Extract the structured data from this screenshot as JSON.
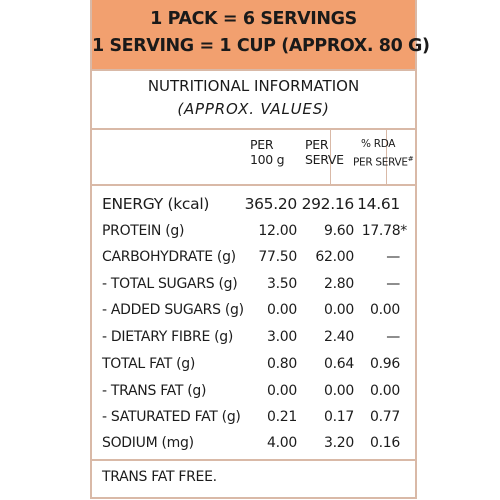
{
  "header": {
    "line1": "1 PACK = 6 SERVINGS",
    "line2": "1 SERVING = 1 CUP (APPROX. 80 G)"
  },
  "title": {
    "line1": "NUTRITIONAL INFORMATION",
    "line2": "(APPROX. VALUES)"
  },
  "columns": {
    "per100_line1": "PER",
    "per100_line2": "100 g",
    "perserve_line1": "PER",
    "perserve_line2": "SERVE",
    "rda_line1": "% RDA",
    "rda_line2": "PER SERVE",
    "rda_mark": "#"
  },
  "rows": [
    {
      "nutrient": "ENERGY (kcal)",
      "per100": "365.20",
      "perserve": "292.16",
      "rda": "14.61"
    },
    {
      "nutrient": "PROTEIN (g)",
      "per100": "12.00",
      "perserve": "9.60",
      "rda": "17.78*"
    },
    {
      "nutrient": "CARBOHYDRATE (g)",
      "per100": "77.50",
      "perserve": "62.00",
      "rda": "—"
    },
    {
      "nutrient": "- TOTAL SUGARS (g)",
      "per100": "3.50",
      "perserve": "2.80",
      "rda": "—"
    },
    {
      "nutrient": "- ADDED SUGARS (g)",
      "per100": "0.00",
      "perserve": "0.00",
      "rda": "0.00"
    },
    {
      "nutrient": "- DIETARY FIBRE (g)",
      "per100": "3.00",
      "perserve": "2.40",
      "rda": "—"
    },
    {
      "nutrient": "TOTAL FAT (g)",
      "per100": "0.80",
      "perserve": "0.64",
      "rda": "0.96"
    },
    {
      "nutrient": "- TRANS FAT (g)",
      "per100": "0.00",
      "perserve": "0.00",
      "rda": "0.00"
    },
    {
      "nutrient": "- SATURATED FAT (g)",
      "per100": "0.21",
      "perserve": "0.17",
      "rda": "0.77"
    },
    {
      "nutrient": "SODIUM (mg)",
      "per100": "4.00",
      "perserve": "3.20",
      "rda": "0.16"
    }
  ],
  "footer": "TRANS FAT FREE.",
  "colors": {
    "header_bg": "#f2a06f",
    "border": "#d9b9a7",
    "text": "#1c1c1c"
  }
}
